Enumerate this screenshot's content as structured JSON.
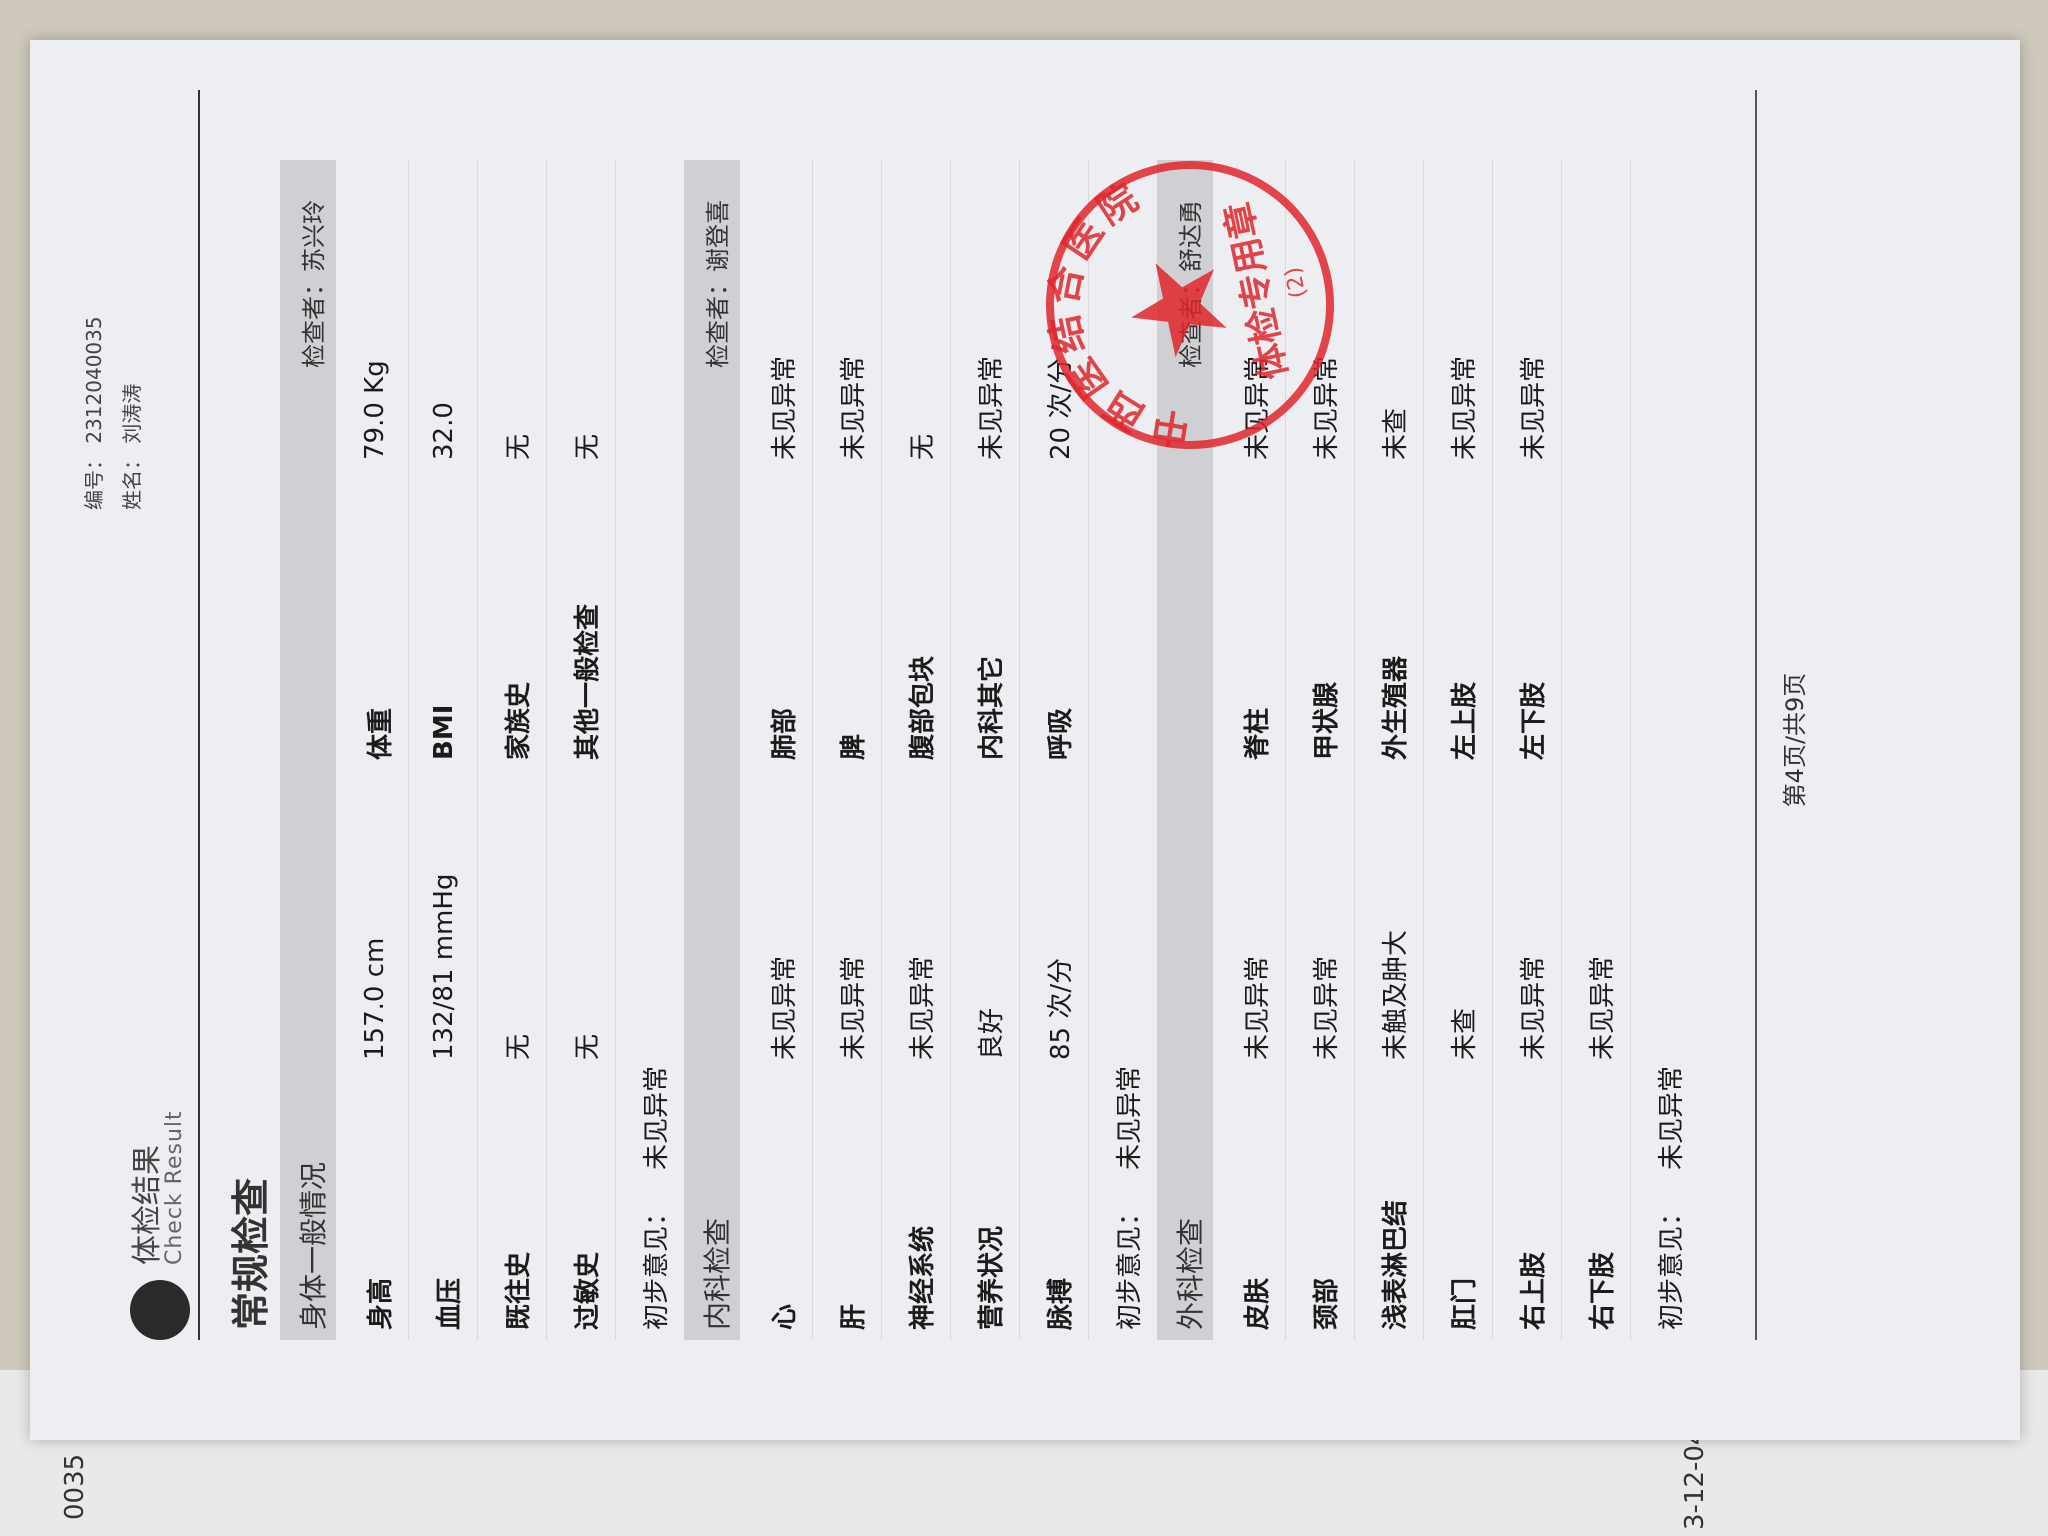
{
  "left_page": {
    "fragments": [
      "0035",
      "3-12-04"
    ]
  },
  "header": {
    "number": "编号： 2312040035",
    "name": "姓名： 刘涛涛",
    "title": "体检结果",
    "subtitle": "Check Result"
  },
  "heading": "常规检查",
  "sections": [
    {
      "title": "身体一般情况",
      "examiner": "检查者：苏兴玲",
      "rows": [
        [
          "身高",
          "157.0 cm",
          "体重",
          "79.0 Kg"
        ],
        [
          "血压",
          "132/81 mmHg",
          "BMI",
          "32.0"
        ],
        [
          "既往史",
          "无",
          "家族史",
          "无"
        ],
        [
          "过敏史",
          "无",
          "其他一般检查",
          "无"
        ]
      ],
      "conclusion_label": "初步意见：",
      "conclusion": "未见异常"
    },
    {
      "title": "内科检查",
      "examiner": "检查者：谢登喜",
      "rows": [
        [
          "心",
          "未见异常",
          "肺部",
          "未见异常"
        ],
        [
          "肝",
          "未见异常",
          "脾",
          "未见异常"
        ],
        [
          "神经系统",
          "未见异常",
          "腹部包块",
          "无"
        ],
        [
          "营养状况",
          "良好",
          "内科其它",
          "未见异常"
        ],
        [
          "脉搏",
          "85 次/分",
          "呼吸",
          "20 次/分"
        ]
      ],
      "conclusion_label": "初步意见：",
      "conclusion": "未见异常"
    },
    {
      "title": "外科检查",
      "examiner": "检查者：舒达勇",
      "rows": [
        [
          "皮肤",
          "未见异常",
          "脊柱",
          "未见异常"
        ],
        [
          "颈部",
          "未见异常",
          "甲状腺",
          "未见异常"
        ],
        [
          "浅表淋巴结",
          "未触及肿大",
          "外生殖器",
          "未查"
        ],
        [
          "肛门",
          "未查",
          "左上肢",
          "未见异常"
        ],
        [
          "右上肢",
          "未见异常",
          "左下肢",
          "未见异常"
        ],
        [
          "右下肢",
          "未见异常"
        ]
      ],
      "conclusion_label": "初步意见：",
      "conclusion": "未见异常"
    }
  ],
  "stamp": {
    "name": "中西医结合医院",
    "purpose": "体检专用章",
    "number": "(2)"
  },
  "footer": "第4页/共9页"
}
